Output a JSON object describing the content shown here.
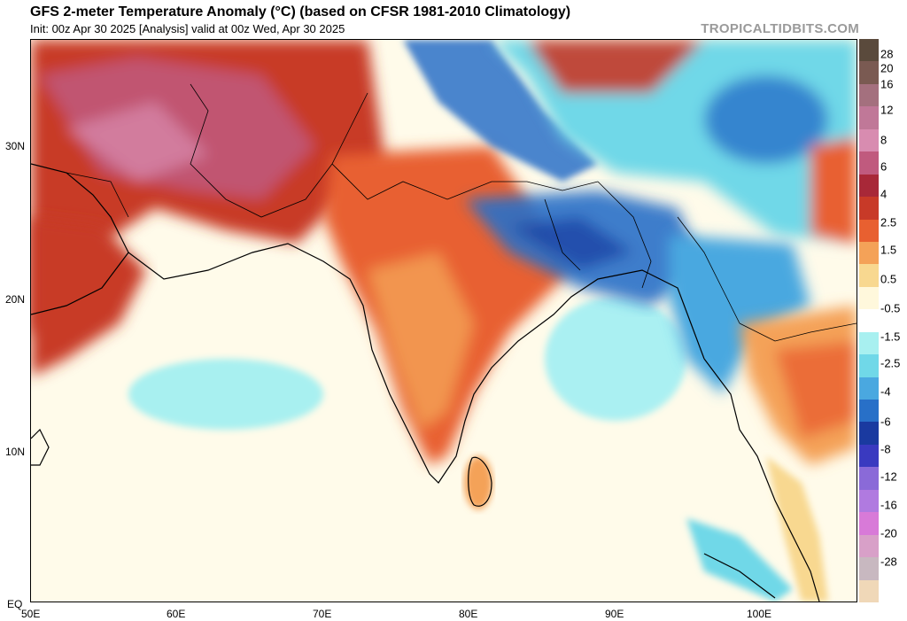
{
  "header": {
    "title": "GFS 2-meter Temperature Anomaly (°C) (based on CFSR 1981-2010 Climatology)",
    "subtitle": "Init: 00z Apr 30 2025   [Analysis]   valid at 00z Wed, Apr 30 2025",
    "credit": "TROPICALTIDBITS.COM"
  },
  "axes": {
    "lat_labels": [
      "30N",
      "20N",
      "10N",
      "EQ"
    ],
    "lon_labels": [
      "50E",
      "60E",
      "70E",
      "80E",
      "90E",
      "100E"
    ]
  },
  "colorbar": {
    "labels": [
      "28",
      "20",
      "16",
      "12",
      "8",
      "6",
      "4",
      "2.5",
      "1.5",
      "0.5",
      "-0.5",
      "-1.5",
      "-2.5",
      "-4",
      "-6",
      "-8",
      "-12",
      "-16",
      "-20",
      "-28"
    ],
    "colors": [
      "#5a4a3c",
      "#7a5a52",
      "#a4707e",
      "#c07898",
      "#d88cb0",
      "#c05a7e",
      "#a82838",
      "#c83a28",
      "#e86030",
      "#f4a258",
      "#f8d890",
      "#fff8dc",
      "#ffffff",
      "#a8f0f0",
      "#70d8e8",
      "#4aa8e0",
      "#2870c8",
      "#1a3aa0",
      "#3a3ac0",
      "#8a6ad8",
      "#b07ae0",
      "#d87ad8",
      "#d8a0c8",
      "#c8b8c0",
      "#f0d8b8"
    ]
  }
}
